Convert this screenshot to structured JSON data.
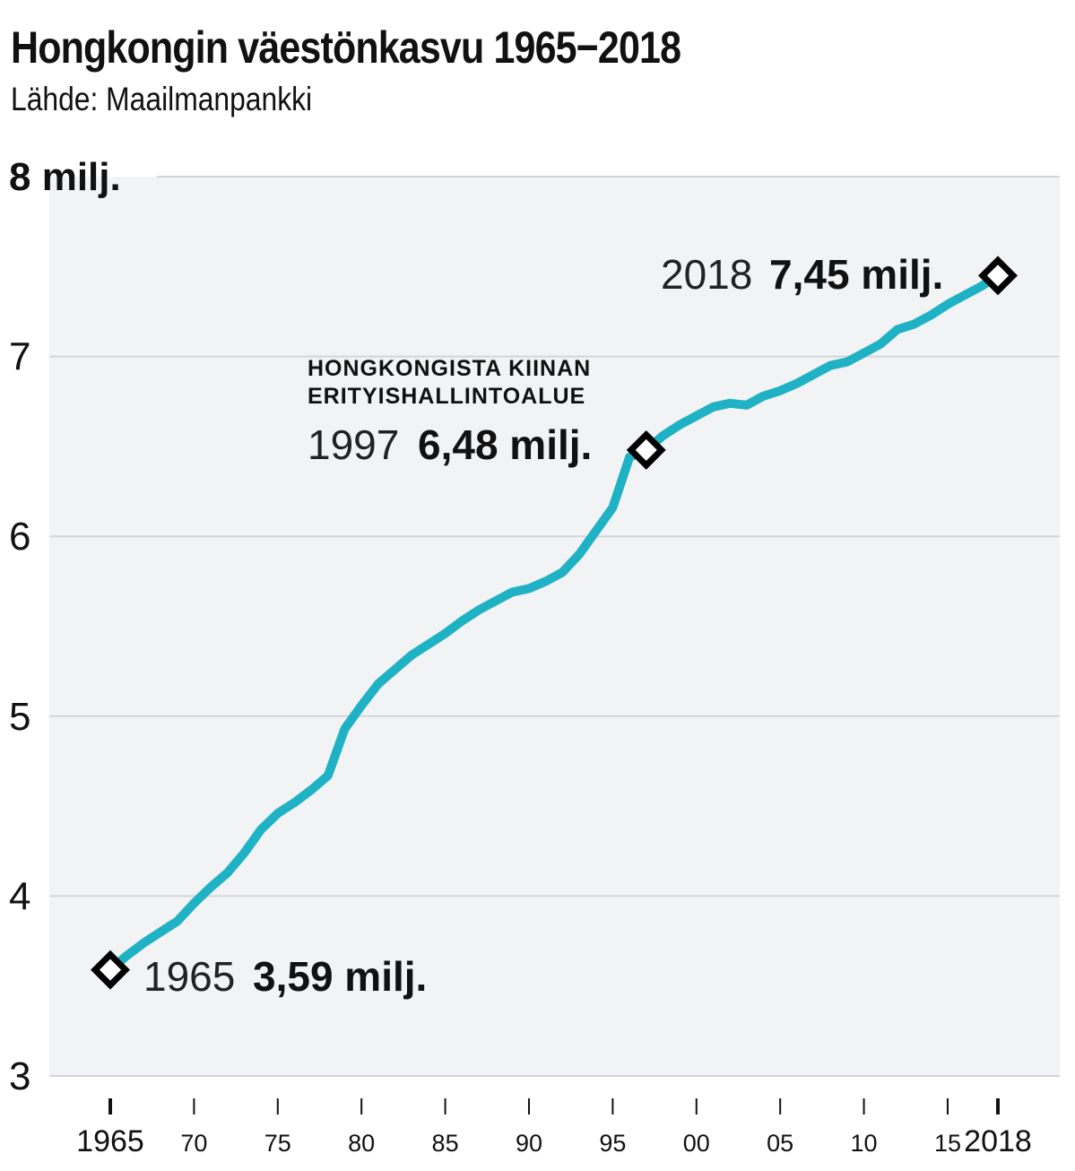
{
  "title": "Hongkongin väestönkasvu 1965−2018",
  "subtitle": "Lähde: Maailmanpankki",
  "chart_data": {
    "type": "line",
    "title": "Hongkongin väestönkasvu 1965−2018",
    "subtitle": "Lähde: Maailmanpankki",
    "xlabel": "",
    "ylabel": "",
    "xlim": [
      1964,
      2019
    ],
    "ylim": [
      3,
      8
    ],
    "grid": true,
    "y_ticks": [
      {
        "value": 8,
        "label": "8 milj."
      },
      {
        "value": 7,
        "label": "7"
      },
      {
        "value": 6,
        "label": "6"
      },
      {
        "value": 5,
        "label": "5"
      },
      {
        "value": 4,
        "label": "4"
      },
      {
        "value": 3,
        "label": "3"
      }
    ],
    "x_ticks": [
      {
        "value": 1965,
        "label": "1965"
      },
      {
        "value": 1970,
        "label": "70"
      },
      {
        "value": 1975,
        "label": "75"
      },
      {
        "value": 1980,
        "label": "80"
      },
      {
        "value": 1985,
        "label": "85"
      },
      {
        "value": 1990,
        "label": "90"
      },
      {
        "value": 1995,
        "label": "95"
      },
      {
        "value": 2000,
        "label": "00"
      },
      {
        "value": 2005,
        "label": "05"
      },
      {
        "value": 2010,
        "label": "10"
      },
      {
        "value": 2015,
        "label": "15"
      },
      {
        "value": 2018,
        "label": "2018"
      }
    ],
    "line_color": "#1fb2c4",
    "series": [
      {
        "x": [
          1965,
          1966,
          1967,
          1968,
          1969,
          1970,
          1971,
          1972,
          1973,
          1974,
          1975,
          1976,
          1977,
          1978,
          1979,
          1980,
          1981,
          1982,
          1983,
          1984,
          1985,
          1986,
          1987,
          1988,
          1989,
          1990,
          1991,
          1992,
          1993,
          1994,
          1995,
          1996,
          1997,
          1998,
          1999,
          2000,
          2001,
          2002,
          2003,
          2004,
          2005,
          2006,
          2007,
          2008,
          2009,
          2010,
          2011,
          2012,
          2013,
          2014,
          2015,
          2016,
          2017,
          2018
        ],
        "y": [
          3.59,
          3.67,
          3.74,
          3.8,
          3.86,
          3.96,
          4.05,
          4.13,
          4.24,
          4.37,
          4.46,
          4.52,
          4.59,
          4.67,
          4.93,
          5.06,
          5.18,
          5.26,
          5.34,
          5.4,
          5.46,
          5.53,
          5.59,
          5.64,
          5.69,
          5.71,
          5.75,
          5.8,
          5.9,
          6.03,
          6.16,
          6.44,
          6.48,
          6.56,
          6.62,
          6.67,
          6.72,
          6.74,
          6.73,
          6.78,
          6.81,
          6.85,
          6.9,
          6.95,
          6.97,
          7.02,
          7.07,
          7.15,
          7.18,
          7.23,
          7.29,
          7.34,
          7.39,
          7.45
        ]
      }
    ],
    "annotations": [
      {
        "year": "1965",
        "value": "3,59 milj.",
        "x": 1965,
        "y": 3.59
      },
      {
        "year": "1997",
        "value": "6,48 milj.",
        "x": 1997,
        "y": 6.48,
        "note_line1": "HONGKONGISTA  KIINAN",
        "note_line2": "ERITYISHALLINTOALUE"
      },
      {
        "year": "2018",
        "value": "7,45 milj.",
        "x": 2018,
        "y": 7.45
      }
    ]
  }
}
